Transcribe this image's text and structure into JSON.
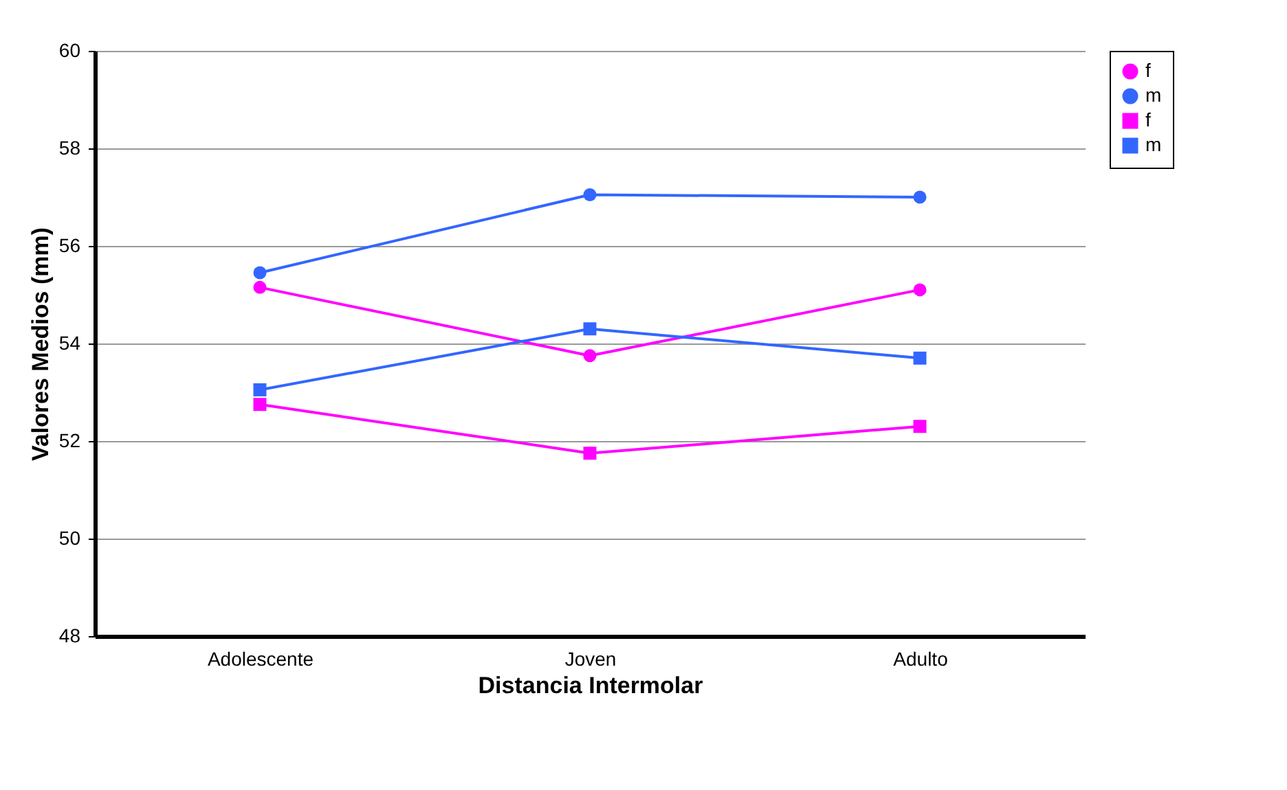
{
  "chart_data": {
    "type": "line",
    "xlabel": "Distancia Intermolar",
    "ylabel": "Valores Medios (mm)",
    "categories": [
      "Adolescente",
      "Joven",
      "Adulto"
    ],
    "series": [
      {
        "name": "f",
        "color": "#ff00ff",
        "marker": "circle",
        "values": [
          55.15,
          53.75,
          55.1
        ]
      },
      {
        "name": "m",
        "color": "#3366ff",
        "marker": "circle",
        "values": [
          55.45,
          57.05,
          57.0
        ]
      },
      {
        "name": "f",
        "color": "#ff00ff",
        "marker": "square",
        "values": [
          52.75,
          51.75,
          52.3
        ]
      },
      {
        "name": "m",
        "color": "#3366ff",
        "marker": "square",
        "values": [
          53.05,
          54.3,
          53.7
        ]
      }
    ],
    "ylim": [
      48,
      60
    ],
    "yticks": [
      48,
      50,
      52,
      54,
      56,
      58,
      60
    ],
    "grid": "y",
    "legend": "right"
  }
}
